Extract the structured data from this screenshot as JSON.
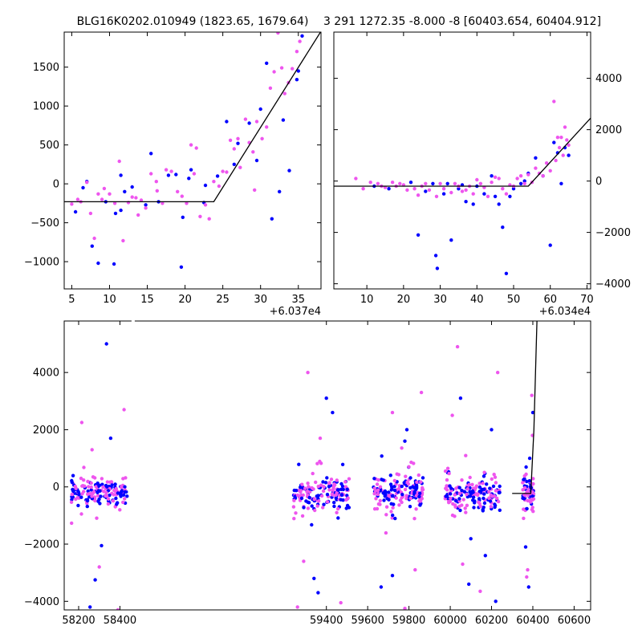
{
  "chart_data": [
    {
      "type": "scatter",
      "title": "BLG16K0202.010949 (1823.65, 1679.64)",
      "x_offset_label": "+6.037e4",
      "xlim": [
        4,
        38
      ],
      "ylim": [
        -1350,
        1950
      ],
      "xticks": [
        5,
        10,
        15,
        20,
        25,
        30,
        35
      ],
      "yticks": [
        -1000,
        -500,
        0,
        500,
        1000,
        1500
      ],
      "ytick_labels": [
        "−1000",
        "−500",
        "0",
        "500",
        "1000",
        "1500"
      ],
      "y_axis_side": "left",
      "model_line": [
        [
          4,
          -230
        ],
        [
          23.8,
          -230
        ],
        [
          38,
          1960
        ]
      ],
      "series": [
        {
          "color": "#0000ff",
          "points": [
            [
              5.5,
              -360
            ],
            [
              6.5,
              -50
            ],
            [
              7,
              30
            ],
            [
              7.7,
              -800
            ],
            [
              8.5,
              -1020
            ],
            [
              9.5,
              -230
            ],
            [
              10.6,
              -1030
            ],
            [
              10.8,
              -380
            ],
            [
              11.5,
              -340
            ],
            [
              12,
              -100
            ],
            [
              13,
              -40
            ],
            [
              14.8,
              -270
            ],
            [
              15.5,
              390
            ],
            [
              16.5,
              -230
            ],
            [
              17.8,
              110
            ],
            [
              18.8,
              120
            ],
            [
              19.5,
              -1070
            ],
            [
              19.7,
              -430
            ],
            [
              20.5,
              70
            ],
            [
              20.8,
              180
            ],
            [
              22.5,
              -240
            ],
            [
              24.3,
              100
            ],
            [
              25.5,
              800
            ],
            [
              26.5,
              250
            ],
            [
              27,
              520
            ],
            [
              28.5,
              780
            ],
            [
              29.5,
              300
            ],
            [
              30,
              960
            ],
            [
              30.8,
              1550
            ],
            [
              31.5,
              -450
            ],
            [
              32.5,
              -100
            ],
            [
              33,
              820
            ],
            [
              33.8,
              170
            ],
            [
              35,
              1450
            ],
            [
              35.5,
              1900
            ],
            [
              34.8,
              1340
            ],
            [
              22.7,
              -20
            ],
            [
              11.5,
              110
            ]
          ]
        },
        {
          "color": "#ee55ee",
          "points": [
            [
              5,
              -260
            ],
            [
              5.8,
              -200
            ],
            [
              6.2,
              -230
            ],
            [
              7,
              20
            ],
            [
              7.5,
              -380
            ],
            [
              8,
              -700
            ],
            [
              8.5,
              -130
            ],
            [
              9.3,
              -60
            ],
            [
              10,
              -130
            ],
            [
              10.7,
              -250
            ],
            [
              11.3,
              290
            ],
            [
              11.8,
              -730
            ],
            [
              12.5,
              -240
            ],
            [
              13,
              -170
            ],
            [
              13.8,
              -400
            ],
            [
              14.2,
              -210
            ],
            [
              14.8,
              -310
            ],
            [
              15.5,
              130
            ],
            [
              16.3,
              -90
            ],
            [
              17,
              -250
            ],
            [
              17.5,
              180
            ],
            [
              18.2,
              160
            ],
            [
              19,
              -100
            ],
            [
              19.6,
              -160
            ],
            [
              20.2,
              -250
            ],
            [
              20.8,
              500
            ],
            [
              21.5,
              460
            ],
            [
              22,
              -420
            ],
            [
              22.7,
              -270
            ],
            [
              23.2,
              -450
            ],
            [
              23.8,
              30
            ],
            [
              24.5,
              -30
            ],
            [
              25,
              160
            ],
            [
              25.5,
              150
            ],
            [
              26,
              560
            ],
            [
              26.5,
              450
            ],
            [
              27,
              580
            ],
            [
              27.3,
              210
            ],
            [
              28,
              830
            ],
            [
              28.5,
              530
            ],
            [
              29,
              410
            ],
            [
              29.5,
              800
            ],
            [
              30.2,
              580
            ],
            [
              30.8,
              730
            ],
            [
              31.3,
              1230
            ],
            [
              31.8,
              1440
            ],
            [
              32.3,
              1940
            ],
            [
              32.8,
              1490
            ],
            [
              33.2,
              1160
            ],
            [
              33.7,
              1300
            ],
            [
              34.2,
              1480
            ],
            [
              34.8,
              1700
            ],
            [
              35.2,
              1830
            ],
            [
              29.2,
              -80
            ],
            [
              21.2,
              130
            ],
            [
              16.2,
              30
            ],
            [
              9,
              -200
            ],
            [
              13.5,
              -180
            ]
          ]
        }
      ]
    },
    {
      "type": "scatter",
      "title": "3 291 1272.35 -8.000 -8 [60403.654, 60404.912]",
      "x_offset_label": "+6.034e4",
      "xlim": [
        1,
        71
      ],
      "ylim": [
        -4200,
        5800
      ],
      "xticks": [
        10,
        20,
        30,
        40,
        50,
        60,
        70
      ],
      "yticks": [
        -4000,
        -2000,
        0,
        2000,
        4000
      ],
      "ytick_labels": [
        "−4000",
        "−2000",
        "0",
        "2000",
        "4000"
      ],
      "y_axis_side": "right",
      "model_line": [
        [
          1,
          -200
        ],
        [
          54,
          -200
        ],
        [
          71,
          2450
        ]
      ],
      "series": [
        {
          "color": "#0000ff",
          "points": [
            [
              12,
              -200
            ],
            [
              16,
              -300
            ],
            [
              22,
              -50
            ],
            [
              24,
              -2100
            ],
            [
              26,
              -400
            ],
            [
              28,
              -100
            ],
            [
              28.8,
              -2900
            ],
            [
              29.2,
              -3400
            ],
            [
              31,
              -500
            ],
            [
              33,
              -2300
            ],
            [
              35,
              -300
            ],
            [
              37,
              -800
            ],
            [
              39,
              -900
            ],
            [
              40,
              -200
            ],
            [
              42,
              -500
            ],
            [
              44,
              200
            ],
            [
              46,
              -900
            ],
            [
              47,
              -1800
            ],
            [
              48,
              -3600
            ],
            [
              49,
              -600
            ],
            [
              50,
              -300
            ],
            [
              52,
              -100
            ],
            [
              54,
              300
            ],
            [
              56,
              900
            ],
            [
              58,
              200
            ],
            [
              60,
              -2500
            ],
            [
              61,
              1500
            ],
            [
              62,
              1100
            ],
            [
              63,
              -100
            ],
            [
              64,
              1300
            ],
            [
              65,
              1000
            ],
            [
              32,
              -100
            ],
            [
              36,
              -150
            ],
            [
              45,
              -600
            ],
            [
              53,
              0
            ]
          ]
        },
        {
          "color": "#ee55ee",
          "points": [
            [
              7,
              100
            ],
            [
              9,
              -300
            ],
            [
              11,
              -50
            ],
            [
              13,
              -100
            ],
            [
              15,
              -250
            ],
            [
              17,
              -50
            ],
            [
              18,
              -200
            ],
            [
              20,
              -150
            ],
            [
              21,
              -350
            ],
            [
              23,
              -300
            ],
            [
              24,
              -550
            ],
            [
              25,
              -200
            ],
            [
              27,
              -350
            ],
            [
              29,
              -600
            ],
            [
              30,
              -100
            ],
            [
              31,
              -300
            ],
            [
              33,
              -450
            ],
            [
              34,
              -100
            ],
            [
              35,
              -200
            ],
            [
              36,
              -400
            ],
            [
              37,
              -350
            ],
            [
              38,
              -200
            ],
            [
              39,
              -500
            ],
            [
              40,
              50
            ],
            [
              41,
              -100
            ],
            [
              42,
              -250
            ],
            [
              43,
              -600
            ],
            [
              44,
              -50
            ],
            [
              45,
              150
            ],
            [
              46,
              100
            ],
            [
              47,
              -300
            ],
            [
              48,
              -500
            ],
            [
              49,
              -150
            ],
            [
              50,
              -200
            ],
            [
              51,
              100
            ],
            [
              52,
              200
            ],
            [
              53,
              -100
            ],
            [
              54,
              250
            ],
            [
              55,
              -50
            ],
            [
              56,
              500
            ],
            [
              57,
              300
            ],
            [
              58,
              200
            ],
            [
              59,
              700
            ],
            [
              60,
              400
            ],
            [
              61,
              3100
            ],
            [
              61.5,
              800
            ],
            [
              62,
              1700
            ],
            [
              62.5,
              1300
            ],
            [
              63,
              1700
            ],
            [
              63.5,
              1000
            ],
            [
              64,
              2100
            ],
            [
              64.5,
              1600
            ],
            [
              65,
              1400
            ],
            [
              26,
              -100
            ],
            [
              19,
              -100
            ],
            [
              14,
              -200
            ]
          ]
        }
      ]
    },
    {
      "type": "scatter",
      "title": "",
      "xlim": [
        58130,
        60680
      ],
      "ylim": [
        -4300,
        5800
      ],
      "xticks": [
        58200,
        58400,
        59400,
        59600,
        59800,
        60000,
        60200,
        60400,
        60600
      ],
      "yticks": [
        -4000,
        -2000,
        0,
        2000,
        4000
      ],
      "ytick_labels": [
        "−4000",
        "−2000",
        "0",
        "2000",
        "4000"
      ],
      "y_axis_side": "left",
      "x_axis_break": {
        "left_end": 58460,
        "right_start": 59220
      },
      "model_line": [
        [
          60300,
          -230
        ],
        [
          60390,
          -230
        ],
        [
          60405,
          2000
        ],
        [
          60420,
          5800
        ]
      ],
      "seasons": [
        {
          "start": 58165,
          "end": 58435,
          "count": 140,
          "spread": 320,
          "outliers": [
            [
              58215,
              2250
            ],
            [
              58335,
              5000
            ],
            [
              58390,
              -4300
            ],
            [
              58255,
              -4200
            ],
            [
              58300,
              -2800
            ],
            [
              58280,
              -3250
            ],
            [
              58420,
              2700
            ],
            [
              58355,
              1700
            ],
            [
              58265,
              1300
            ]
          ]
        },
        {
          "start": 59240,
          "end": 59510,
          "count": 140,
          "spread": 380,
          "outliers": [
            [
              59310,
              4000
            ],
            [
              59400,
              3100
            ],
            [
              59260,
              -4200
            ],
            [
              59340,
              -3200
            ],
            [
              59470,
              -4050
            ],
            [
              59360,
              -3700
            ],
            [
              59290,
              -2600
            ],
            [
              59430,
              2600
            ],
            [
              59370,
              1700
            ]
          ]
        },
        {
          "start": 59620,
          "end": 59870,
          "count": 140,
          "spread": 380,
          "outliers": [
            [
              59720,
              2600
            ],
            [
              59790,
              2000
            ],
            [
              59860,
              3300
            ],
            [
              59665,
              -3500
            ],
            [
              59780,
              -4250
            ],
            [
              59720,
              -3100
            ],
            [
              59830,
              -2900
            ],
            [
              59780,
              1600
            ]
          ]
        },
        {
          "start": 59975,
          "end": 60240,
          "count": 140,
          "spread": 360,
          "outliers": [
            [
              60035,
              4900
            ],
            [
              60050,
              3100
            ],
            [
              60230,
              4000
            ],
            [
              60200,
              2000
            ],
            [
              60010,
              2500
            ],
            [
              60090,
              -3400
            ],
            [
              60145,
              -3650
            ],
            [
              60220,
              -4000
            ],
            [
              60060,
              -2700
            ],
            [
              60170,
              -2400
            ]
          ]
        },
        {
          "start": 60350,
          "end": 60405,
          "count": 40,
          "spread": 280,
          "outliers": [
            [
              60395,
              3200
            ],
            [
              60400,
              2600
            ],
            [
              60398,
              1800
            ],
            [
              60385,
              1000
            ],
            [
              60355,
              -1100
            ],
            [
              60365,
              -2100
            ],
            [
              60375,
              -2900
            ],
            [
              60380,
              -3500
            ],
            [
              60370,
              -3150
            ]
          ]
        }
      ],
      "series": [
        {
          "color": "#0000ff"
        },
        {
          "color": "#ee55ee"
        }
      ]
    }
  ]
}
